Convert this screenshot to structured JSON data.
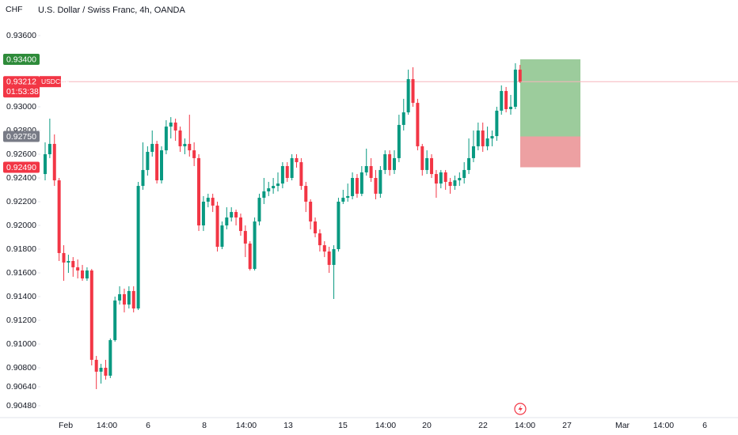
{
  "chart_data": {
    "type": "candlestick",
    "title": "U.S. Dollar / Swiss Franc, 4h, OANDA",
    "currency": "CHF",
    "symbol": "USDCHF",
    "countdown": "01:53:38",
    "last_price": {
      "value": 0.93212,
      "label": "0.93212"
    },
    "up_color": "#089981",
    "down_color": "#f23645",
    "grid": false,
    "ylim": [
      0.9038,
      0.939
    ],
    "yticks": [
      {
        "value": 0.936,
        "label": "0.93600"
      },
      {
        "value": 0.93,
        "label": "0.93000"
      },
      {
        "value": 0.928,
        "label": "0.92800"
      },
      {
        "value": 0.926,
        "label": "0.92600"
      },
      {
        "value": 0.924,
        "label": "0.92400"
      },
      {
        "value": 0.922,
        "label": "0.92200"
      },
      {
        "value": 0.92,
        "label": "0.92000"
      },
      {
        "value": 0.918,
        "label": "0.91800"
      },
      {
        "value": 0.916,
        "label": "0.91600"
      },
      {
        "value": 0.914,
        "label": "0.91400"
      },
      {
        "value": 0.912,
        "label": "0.91200"
      },
      {
        "value": 0.91,
        "label": "0.91000"
      },
      {
        "value": 0.908,
        "label": "0.90800"
      },
      {
        "value": 0.9064,
        "label": "0.90640"
      },
      {
        "value": 0.9048,
        "label": "0.90480"
      }
    ],
    "x_labels": [
      "Feb",
      "14:00",
      "6",
      "8",
      "14:00",
      "13",
      "15",
      "14:00",
      "20",
      "22",
      "14:00",
      "27",
      "Mar",
      "14:00",
      "6"
    ],
    "position": {
      "target": {
        "value": 0.934,
        "label": "0.93400"
      },
      "entry": {
        "value": 0.9275,
        "label": "0.92750"
      },
      "stop": {
        "value": 0.9249,
        "label": "0.92490"
      }
    },
    "ohlc": [
      [
        0.92433,
        0.927,
        0.9238,
        0.926
      ],
      [
        0.926,
        0.929,
        0.92567,
        0.92687
      ],
      [
        0.92687,
        0.92767,
        0.92333,
        0.9238
      ],
      [
        0.9238,
        0.924,
        0.917,
        0.91767
      ],
      [
        0.91767,
        0.91833,
        0.91533,
        0.91687
      ],
      [
        0.91687,
        0.91753,
        0.916,
        0.917
      ],
      [
        0.917,
        0.91733,
        0.91567,
        0.91647
      ],
      [
        0.91647,
        0.91713,
        0.91553,
        0.9162
      ],
      [
        0.9162,
        0.91667,
        0.91533,
        0.91553
      ],
      [
        0.91553,
        0.91647,
        0.91533,
        0.9162
      ],
      [
        0.9162,
        0.91633,
        0.9082,
        0.90867
      ],
      [
        0.90867,
        0.909,
        0.9062,
        0.90767
      ],
      [
        0.90767,
        0.90833,
        0.90667,
        0.908
      ],
      [
        0.908,
        0.90867,
        0.907,
        0.90733
      ],
      [
        0.90733,
        0.91047,
        0.90713,
        0.91033
      ],
      [
        0.91033,
        0.914,
        0.9102,
        0.91367
      ],
      [
        0.91367,
        0.91487,
        0.91333,
        0.9142
      ],
      [
        0.9142,
        0.91467,
        0.91267,
        0.91333
      ],
      [
        0.91333,
        0.91487,
        0.913,
        0.91447
      ],
      [
        0.91447,
        0.91487,
        0.91267,
        0.913
      ],
      [
        0.913,
        0.92367,
        0.91287,
        0.92333
      ],
      [
        0.92333,
        0.927,
        0.923,
        0.92467
      ],
      [
        0.92467,
        0.92667,
        0.9242,
        0.9262
      ],
      [
        0.9262,
        0.928,
        0.9258,
        0.92687
      ],
      [
        0.92687,
        0.92713,
        0.92353,
        0.9238
      ],
      [
        0.9238,
        0.92667,
        0.92353,
        0.92633
      ],
      [
        0.92633,
        0.92887,
        0.926,
        0.92833
      ],
      [
        0.92833,
        0.92913,
        0.92733,
        0.92867
      ],
      [
        0.92867,
        0.929,
        0.92713,
        0.928
      ],
      [
        0.928,
        0.92833,
        0.9262,
        0.92667
      ],
      [
        0.92667,
        0.92733,
        0.926,
        0.92687
      ],
      [
        0.92687,
        0.92933,
        0.9258,
        0.92633
      ],
      [
        0.92633,
        0.927,
        0.925,
        0.92567
      ],
      [
        0.92567,
        0.926,
        0.91953,
        0.92
      ],
      [
        0.92,
        0.92247,
        0.91953,
        0.922
      ],
      [
        0.922,
        0.92267,
        0.92153,
        0.92233
      ],
      [
        0.92233,
        0.92267,
        0.92113,
        0.92167
      ],
      [
        0.92167,
        0.922,
        0.9178,
        0.9182
      ],
      [
        0.9182,
        0.92033,
        0.918,
        0.92
      ],
      [
        0.92,
        0.92153,
        0.91967,
        0.92067
      ],
      [
        0.92067,
        0.92153,
        0.92033,
        0.92113
      ],
      [
        0.92113,
        0.92133,
        0.92,
        0.92067
      ],
      [
        0.92067,
        0.921,
        0.91913,
        0.91953
      ],
      [
        0.91953,
        0.92,
        0.91733,
        0.91847
      ],
      [
        0.91847,
        0.91867,
        0.9162,
        0.91633
      ],
      [
        0.91633,
        0.92067,
        0.9162,
        0.92033
      ],
      [
        0.92033,
        0.92267,
        0.92,
        0.92233
      ],
      [
        0.92233,
        0.924,
        0.9218,
        0.92287
      ],
      [
        0.92287,
        0.92367,
        0.92247,
        0.92313
      ],
      [
        0.92313,
        0.924,
        0.92267,
        0.92333
      ],
      [
        0.92333,
        0.92447,
        0.92287,
        0.92353
      ],
      [
        0.92353,
        0.92533,
        0.92313,
        0.925
      ],
      [
        0.925,
        0.92533,
        0.92367,
        0.924
      ],
      [
        0.924,
        0.926,
        0.9238,
        0.92567
      ],
      [
        0.92567,
        0.926,
        0.92487,
        0.92533
      ],
      [
        0.92533,
        0.92567,
        0.923,
        0.92333
      ],
      [
        0.92333,
        0.92367,
        0.92113,
        0.922
      ],
      [
        0.922,
        0.9222,
        0.91967,
        0.92033
      ],
      [
        0.92033,
        0.92067,
        0.919,
        0.91933
      ],
      [
        0.91933,
        0.91967,
        0.9178,
        0.91833
      ],
      [
        0.91833,
        0.91867,
        0.91733,
        0.9178
      ],
      [
        0.9178,
        0.9182,
        0.916,
        0.91667
      ],
      [
        0.91667,
        0.91833,
        0.9138,
        0.918
      ],
      [
        0.918,
        0.92233,
        0.9178,
        0.922
      ],
      [
        0.922,
        0.923,
        0.9218,
        0.92233
      ],
      [
        0.92233,
        0.92353,
        0.922,
        0.92247
      ],
      [
        0.92247,
        0.92447,
        0.9222,
        0.924
      ],
      [
        0.924,
        0.92433,
        0.92233,
        0.92267
      ],
      [
        0.92267,
        0.925,
        0.92247,
        0.92447
      ],
      [
        0.92447,
        0.92647,
        0.9242,
        0.925
      ],
      [
        0.925,
        0.92567,
        0.92367,
        0.924
      ],
      [
        0.924,
        0.92467,
        0.9222,
        0.92267
      ],
      [
        0.92267,
        0.925,
        0.92233,
        0.92467
      ],
      [
        0.92467,
        0.92633,
        0.92433,
        0.926
      ],
      [
        0.926,
        0.92633,
        0.9242,
        0.92467
      ],
      [
        0.92467,
        0.92633,
        0.92433,
        0.92567
      ],
      [
        0.92567,
        0.92933,
        0.92533,
        0.92847
      ],
      [
        0.92847,
        0.93067,
        0.928,
        0.92953
      ],
      [
        0.92953,
        0.93313,
        0.92933,
        0.93233
      ],
      [
        0.93233,
        0.93333,
        0.93,
        0.93033
      ],
      [
        0.93033,
        0.93067,
        0.92633,
        0.92667
      ],
      [
        0.92667,
        0.92687,
        0.9242,
        0.92467
      ],
      [
        0.92467,
        0.92633,
        0.92433,
        0.92567
      ],
      [
        0.92567,
        0.926,
        0.924,
        0.92433
      ],
      [
        0.92433,
        0.92467,
        0.92233,
        0.92353
      ],
      [
        0.92353,
        0.92467,
        0.92313,
        0.92447
      ],
      [
        0.92447,
        0.92467,
        0.923,
        0.92367
      ],
      [
        0.92367,
        0.924,
        0.92267,
        0.92333
      ],
      [
        0.92333,
        0.9242,
        0.923,
        0.9238
      ],
      [
        0.9238,
        0.92447,
        0.92333,
        0.924
      ],
      [
        0.924,
        0.92533,
        0.92353,
        0.92467
      ],
      [
        0.92467,
        0.92733,
        0.92433,
        0.92567
      ],
      [
        0.92567,
        0.928,
        0.92533,
        0.92667
      ],
      [
        0.92667,
        0.92867,
        0.92633,
        0.928
      ],
      [
        0.928,
        0.92867,
        0.9262,
        0.92667
      ],
      [
        0.92667,
        0.92833,
        0.92633,
        0.92733
      ],
      [
        0.92733,
        0.928,
        0.92667,
        0.92753
      ],
      [
        0.92753,
        0.93,
        0.92713,
        0.92967
      ],
      [
        0.92967,
        0.9318,
        0.92933,
        0.93133
      ],
      [
        0.93133,
        0.93167,
        0.92953,
        0.9298
      ],
      [
        0.9298,
        0.931,
        0.92933,
        0.93
      ],
      [
        0.93,
        0.93367,
        0.9298,
        0.93313
      ],
      [
        0.93313,
        0.93353,
        0.932,
        0.93212
      ]
    ]
  }
}
